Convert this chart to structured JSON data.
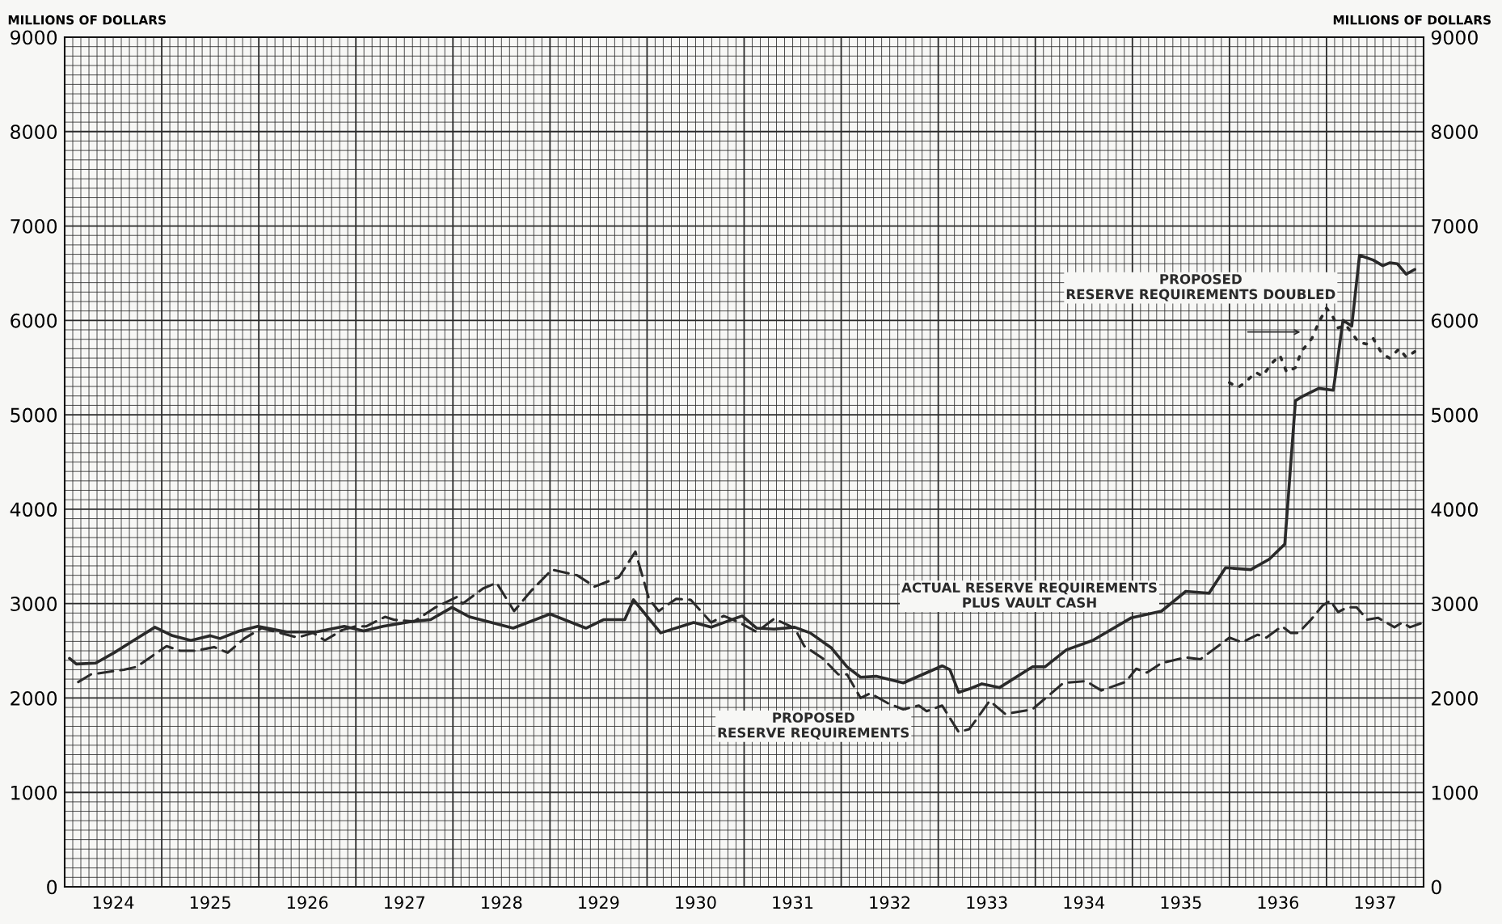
{
  "chart_data": {
    "type": "line",
    "ylabel": "MILLIONS OF DOLLARS",
    "y2label": "MILLIONS OF DOLLARS",
    "xlim": [
      1924,
      1938
    ],
    "xticks": [
      {
        "value": 1924.5,
        "label": "1924"
      },
      {
        "value": 1925.5,
        "label": "1925"
      },
      {
        "value": 1926.5,
        "label": "1926"
      },
      {
        "value": 1927.5,
        "label": "1927"
      },
      {
        "value": 1928.5,
        "label": "1928"
      },
      {
        "value": 1929.5,
        "label": "1929"
      },
      {
        "value": 1930.5,
        "label": "1930"
      },
      {
        "value": 1931.5,
        "label": "1931"
      },
      {
        "value": 1932.5,
        "label": "1932"
      },
      {
        "value": 1933.5,
        "label": "1933"
      },
      {
        "value": 1934.5,
        "label": "1934"
      },
      {
        "value": 1935.5,
        "label": "1935"
      },
      {
        "value": 1936.5,
        "label": "1936"
      },
      {
        "value": 1937.5,
        "label": "1937"
      }
    ],
    "ylim": [
      0,
      9000
    ],
    "yticks": [
      0,
      1000,
      2000,
      3000,
      4000,
      5000,
      6000,
      7000,
      8000,
      9000
    ],
    "y2lim": [
      0,
      9000
    ],
    "y2ticks": [
      0,
      1000,
      2000,
      3000,
      4000,
      5000,
      6000,
      7000,
      8000,
      9000
    ],
    "grid": true,
    "series": [
      {
        "color": "#2a2a2a",
        "line_style": "solid",
        "x": [
          1924.05,
          1924.12,
          1924.32,
          1924.51,
          1924.71,
          1924.93,
          1925.11,
          1925.3,
          1925.5,
          1925.6,
          1925.8,
          1925.99,
          1926.29,
          1926.59,
          1926.88,
          1927.08,
          1927.28,
          1927.57,
          1927.77,
          1927.99,
          1928.17,
          1928.62,
          1929.0,
          1929.37,
          1929.55,
          1929.77,
          1929.86,
          1930.14,
          1930.48,
          1930.66,
          1930.98,
          1931.13,
          1931.31,
          1931.52,
          1931.68,
          1931.9,
          1932.06,
          1932.2,
          1932.36,
          1932.64,
          1933.04,
          1933.12,
          1933.21,
          1933.33,
          1933.45,
          1933.63,
          1933.97,
          1934.1,
          1934.32,
          1934.59,
          1934.99,
          1935.3,
          1935.55,
          1935.79,
          1935.96,
          1936.22,
          1936.41,
          1936.57,
          1936.68,
          1936.76,
          1936.92,
          1937.07,
          1937.17,
          1937.26,
          1937.34,
          1937.48,
          1937.58,
          1937.65,
          1937.73,
          1937.82,
          1937.91
        ],
        "values": [
          2420,
          2360,
          2370,
          2480,
          2610,
          2750,
          2660,
          2610,
          2660,
          2630,
          2710,
          2760,
          2700,
          2700,
          2760,
          2710,
          2760,
          2810,
          2830,
          2960,
          2860,
          2740,
          2890,
          2740,
          2830,
          2830,
          3040,
          2690,
          2800,
          2750,
          2870,
          2740,
          2730,
          2750,
          2690,
          2530,
          2330,
          2220,
          2230,
          2160,
          2340,
          2300,
          2060,
          2100,
          2150,
          2110,
          2330,
          2330,
          2510,
          2610,
          2850,
          2920,
          3130,
          3110,
          3380,
          3360,
          3470,
          3630,
          5150,
          5200,
          5280,
          5260,
          6000,
          5940,
          6690,
          6640,
          6580,
          6610,
          6600,
          6490,
          6540
        ]
      },
      {
        "color": "#2a2a2a",
        "line_style": "dashed",
        "x": [
          1924.14,
          1924.27,
          1924.61,
          1924.74,
          1925.05,
          1925.19,
          1925.35,
          1925.54,
          1925.68,
          1925.85,
          1926.03,
          1926.22,
          1926.4,
          1926.56,
          1926.68,
          1926.86,
          1927.0,
          1927.11,
          1927.3,
          1927.39,
          1927.6,
          1927.82,
          1928.04,
          1928.1,
          1928.31,
          1928.45,
          1928.63,
          1928.81,
          1929.02,
          1929.28,
          1929.46,
          1929.71,
          1929.88,
          1930.02,
          1930.12,
          1930.3,
          1930.45,
          1930.66,
          1930.79,
          1930.95,
          1931.13,
          1931.31,
          1931.52,
          1931.62,
          1931.81,
          1931.97,
          1932.06,
          1932.2,
          1932.3,
          1932.49,
          1932.64,
          1932.8,
          1932.88,
          1933.04,
          1933.21,
          1933.32,
          1933.53,
          1933.69,
          1933.97,
          1934.29,
          1934.52,
          1934.68,
          1934.93,
          1935.04,
          1935.15,
          1935.3,
          1935.55,
          1935.7,
          1936.0,
          1936.13,
          1936.29,
          1936.38,
          1936.54,
          1936.63,
          1936.71,
          1936.84,
          1936.96,
          1937.04,
          1937.12,
          1937.21,
          1937.31,
          1937.42,
          1937.53,
          1937.7,
          1937.78,
          1937.86,
          1937.97
        ],
        "values": [
          2170,
          2250,
          2300,
          2330,
          2550,
          2500,
          2500,
          2540,
          2480,
          2630,
          2740,
          2690,
          2640,
          2690,
          2610,
          2720,
          2760,
          2760,
          2860,
          2830,
          2810,
          2960,
          3070,
          3000,
          3160,
          3220,
          2920,
          3140,
          3360,
          3300,
          3180,
          3280,
          3550,
          3050,
          2920,
          3050,
          3040,
          2800,
          2870,
          2800,
          2700,
          2840,
          2740,
          2550,
          2420,
          2250,
          2250,
          2000,
          2050,
          1940,
          1880,
          1920,
          1860,
          1920,
          1640,
          1670,
          1970,
          1830,
          1880,
          2160,
          2180,
          2080,
          2170,
          2310,
          2270,
          2370,
          2430,
          2410,
          2640,
          2590,
          2670,
          2640,
          2760,
          2690,
          2690,
          2830,
          2980,
          3030,
          2910,
          2960,
          2960,
          2830,
          2850,
          2750,
          2800,
          2750,
          2790
        ]
      },
      {
        "color": "#2a2a2a",
        "line_style": "dotted",
        "x": [
          1936.0,
          1936.09,
          1936.17,
          1936.27,
          1936.34,
          1936.44,
          1936.52,
          1936.59,
          1936.68,
          1936.74,
          1936.85,
          1936.92,
          1937.0,
          1937.06,
          1937.12,
          1937.2,
          1937.33,
          1937.41,
          1937.48,
          1937.57,
          1937.65,
          1937.75,
          1937.82,
          1937.91
        ],
        "values": [
          5340,
          5290,
          5350,
          5450,
          5410,
          5550,
          5630,
          5450,
          5500,
          5670,
          5810,
          5980,
          6130,
          6050,
          5920,
          5950,
          5770,
          5750,
          5810,
          5650,
          5600,
          5700,
          5610,
          5670
        ]
      }
    ],
    "annotations": [
      "ACTUAL RESERVE REQUIREMENTS\nPLUS VAULT CASH",
      "PROPOSED\nRESERVE REQUIREMENTS",
      "PROPOSED\nRESERVE REQUIREMENTS DOUBLED"
    ]
  }
}
